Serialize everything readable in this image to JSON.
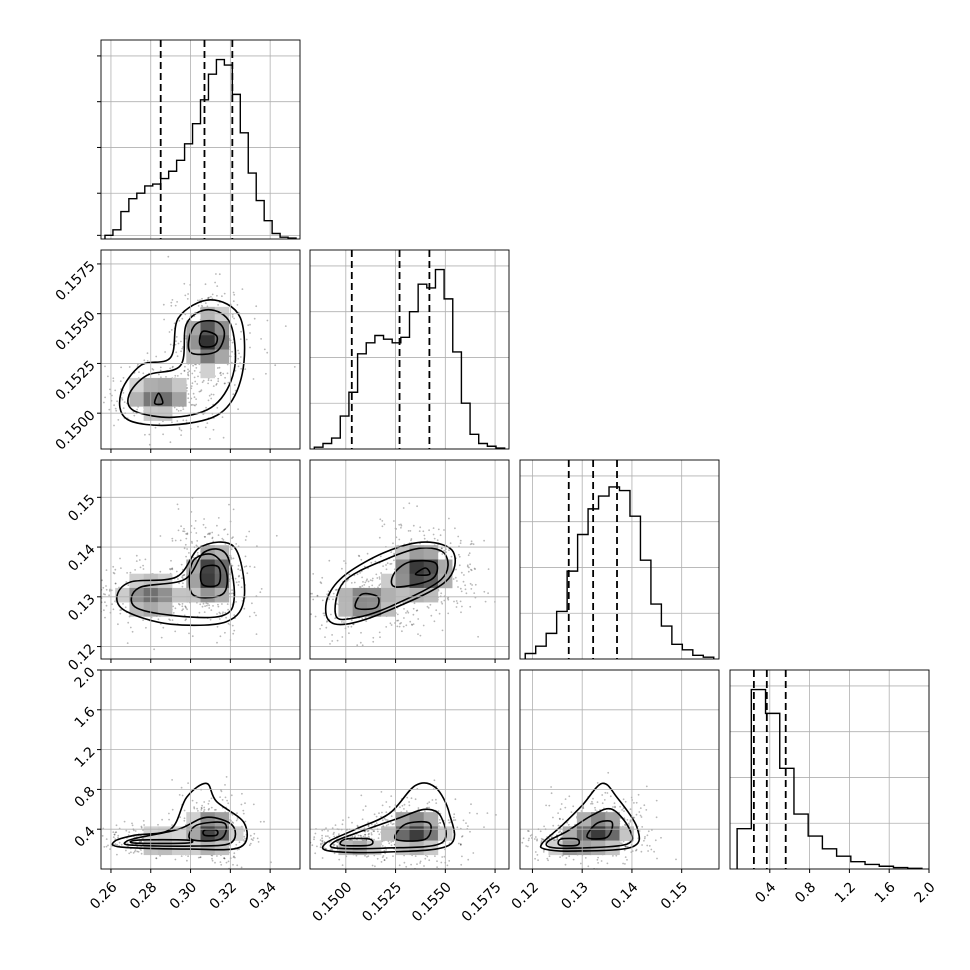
{
  "chart_data": {
    "type": "corner",
    "grid": true,
    "colors": {
      "line": "#000000",
      "grid": "#b0b0b0",
      "points": "#000000",
      "density_dark": "#141414",
      "background": "#ffffff"
    },
    "parameters": [
      {
        "range": [
          0.255,
          0.355
        ],
        "ticks": [
          0.26,
          0.28,
          0.3,
          0.32,
          0.34
        ],
        "tick_labels": [
          "0.26",
          "0.28",
          "0.30",
          "0.32",
          "0.34"
        ],
        "quantiles": [
          0.285,
          0.307,
          0.321
        ],
        "histogram": [
          0.02,
          0.05,
          0.15,
          0.22,
          0.25,
          0.29,
          0.3,
          0.33,
          0.37,
          0.43,
          0.52,
          0.63,
          0.76,
          0.9,
          0.98,
          0.95,
          0.79,
          0.58,
          0.36,
          0.21,
          0.1,
          0.03,
          0.01,
          0.005
        ]
      },
      {
        "range": [
          0.1482,
          0.1582
        ],
        "ticks": [
          0.15,
          0.1525,
          0.155,
          0.1575
        ],
        "tick_labels": [
          "0.1500",
          "0.1525",
          "0.1550",
          "0.1575"
        ],
        "quantiles": [
          0.1503,
          0.1527,
          0.1542
        ],
        "histogram": [
          0.01,
          0.03,
          0.06,
          0.18,
          0.31,
          0.52,
          0.58,
          0.62,
          0.6,
          0.58,
          0.61,
          0.75,
          0.9,
          0.88,
          0.98,
          0.82,
          0.53,
          0.25,
          0.08,
          0.03,
          0.015,
          0.005
        ]
      },
      {
        "range": [
          0.1175,
          0.1575
        ],
        "ticks": [
          0.12,
          0.13,
          0.14,
          0.15
        ],
        "tick_labels": [
          "0.12",
          "0.13",
          "0.14",
          "0.15"
        ],
        "quantiles": [
          0.1273,
          0.1322,
          0.137
        ],
        "histogram": [
          0.03,
          0.07,
          0.14,
          0.26,
          0.48,
          0.68,
          0.82,
          0.89,
          0.94,
          0.92,
          0.78,
          0.54,
          0.3,
          0.18,
          0.08,
          0.05,
          0.02,
          0.01
        ]
      },
      {
        "range": [
          0.0,
          2.0
        ],
        "ticks": [
          0.4,
          0.8,
          1.2,
          1.6,
          2.0
        ],
        "tick_labels": [
          "0.4",
          "0.8",
          "1.2",
          "1.6",
          "2.0"
        ],
        "quantiles": [
          0.24,
          0.37,
          0.56
        ],
        "histogram": [
          0.22,
          0.98,
          0.85,
          0.55,
          0.3,
          0.18,
          0.11,
          0.07,
          0.04,
          0.025,
          0.015,
          0.008,
          0.004
        ]
      }
    ],
    "histogram_diagonal_ticks": {
      "0": [
        0.02,
        0.25,
        0.5,
        0.75,
        1.0
      ],
      "1": [
        0.0,
        0.25,
        0.5,
        0.75,
        1.0
      ],
      "2": [
        0.0,
        0.25,
        0.5,
        0.75,
        1.0
      ],
      "3": [
        0.0,
        0.25,
        0.5,
        0.75,
        1.0
      ]
    },
    "pairs": [
      {
        "row": 1,
        "col": 0,
        "scatter_spread": [
          0.013,
          0.0013
        ],
        "modes": [
          {
            "x": 0.3094,
            "y": 0.1537,
            "sx": 0.007,
            "sy": 0.0009,
            "w": 0.58
          },
          {
            "x": 0.2845,
            "y": 0.1508,
            "sx": 0.01,
            "sy": 0.0006,
            "w": 0.42
          }
        ],
        "contours": [
          [
            [
              0.268,
              0.1497
            ],
            [
              0.29,
              0.1494
            ],
            [
              0.315,
              0.15
            ],
            [
              0.326,
              0.152
            ],
            [
              0.325,
              0.1548
            ],
            [
              0.31,
              0.1557
            ],
            [
              0.294,
              0.1548
            ],
            [
              0.29,
              0.1528
            ],
            [
              0.275,
              0.1524
            ],
            [
              0.265,
              0.151
            ]
          ],
          [
            [
              0.272,
              0.1501
            ],
            [
              0.292,
              0.1498
            ],
            [
              0.312,
              0.1504
            ],
            [
              0.322,
              0.1522
            ],
            [
              0.32,
              0.1545
            ],
            [
              0.309,
              0.1552
            ],
            [
              0.298,
              0.1545
            ],
            [
              0.295,
              0.1524
            ],
            [
              0.278,
              0.1519
            ],
            [
              0.269,
              0.1509
            ]
          ],
          [
            [
              0.301,
              0.153
            ],
            [
              0.313,
              0.1531
            ],
            [
              0.317,
              0.154
            ],
            [
              0.313,
              0.1546
            ],
            [
              0.303,
              0.1545
            ],
            [
              0.299,
              0.1536
            ]
          ],
          [
            [
              0.305,
              0.1534
            ],
            [
              0.312,
              0.1534
            ],
            [
              0.313,
              0.1539
            ],
            [
              0.306,
              0.1541
            ]
          ],
          [
            [
              0.282,
              0.1505
            ],
            [
              0.286,
              0.1505
            ],
            [
              0.284,
              0.151
            ]
          ]
        ]
      },
      {
        "row": 2,
        "col": 0,
        "scatter_spread": [
          0.013,
          0.005
        ],
        "modes": [
          {
            "x": 0.3105,
            "y": 0.1345,
            "sx": 0.007,
            "sy": 0.0035,
            "w": 0.6
          },
          {
            "x": 0.28,
            "y": 0.13,
            "sx": 0.01,
            "sy": 0.0025,
            "w": 0.4
          }
        ],
        "contours": [
          [
            [
              0.268,
              0.127
            ],
            [
              0.29,
              0.1245
            ],
            [
              0.318,
              0.125
            ],
            [
              0.327,
              0.13
            ],
            [
              0.322,
              0.14
            ],
            [
              0.305,
              0.14
            ],
            [
              0.293,
              0.134
            ],
            [
              0.27,
              0.133
            ],
            [
              0.263,
              0.13
            ]
          ],
          [
            [
              0.272,
              0.128
            ],
            [
              0.292,
              0.1262
            ],
            [
              0.316,
              0.1262
            ],
            [
              0.322,
              0.13
            ],
            [
              0.318,
              0.1385
            ],
            [
              0.307,
              0.139
            ],
            [
              0.297,
              0.1335
            ],
            [
              0.274,
              0.1318
            ]
          ],
          [
            [
              0.301,
              0.1305
            ],
            [
              0.316,
              0.1305
            ],
            [
              0.318,
              0.135
            ],
            [
              0.311,
              0.1385
            ],
            [
              0.301,
              0.137
            ]
          ],
          [
            [
              0.306,
              0.1325
            ],
            [
              0.314,
              0.1325
            ],
            [
              0.314,
              0.136
            ],
            [
              0.306,
              0.1358
            ]
          ]
        ]
      },
      {
        "row": 2,
        "col": 1,
        "scatter_spread": [
          0.0013,
          0.0055
        ],
        "modes": [
          {
            "x": 0.1538,
            "y": 0.135,
            "sx": 0.0009,
            "sy": 0.0032,
            "w": 0.6
          },
          {
            "x": 0.151,
            "y": 0.129,
            "sx": 0.001,
            "sy": 0.0025,
            "w": 0.4
          }
        ],
        "contours": [
          [
            [
              0.1491,
              0.1255
            ],
            [
              0.15,
              0.1245
            ],
            [
              0.152,
              0.127
            ],
            [
              0.155,
              0.133
            ],
            [
              0.1554,
              0.139
            ],
            [
              0.154,
              0.141
            ],
            [
              0.152,
              0.139
            ],
            [
              0.15,
              0.1345
            ],
            [
              0.1491,
              0.13
            ]
          ],
          [
            [
              0.1495,
              0.1262
            ],
            [
              0.1505,
              0.1258
            ],
            [
              0.1522,
              0.128
            ],
            [
              0.1548,
              0.1335
            ],
            [
              0.155,
              0.1385
            ],
            [
              0.1538,
              0.1398
            ],
            [
              0.152,
              0.1375
            ],
            [
              0.1499,
              0.133
            ]
          ],
          [
            [
              0.1505,
              0.1278
            ],
            [
              0.1515,
              0.1278
            ],
            [
              0.1516,
              0.13
            ],
            [
              0.1508,
              0.1305
            ]
          ],
          [
            [
              0.1525,
              0.132
            ],
            [
              0.1543,
              0.1335
            ],
            [
              0.1545,
              0.1368
            ],
            [
              0.1532,
              0.137
            ],
            [
              0.1524,
              0.1345
            ]
          ],
          [
            [
              0.1535,
              0.1345
            ],
            [
              0.1542,
              0.1345
            ],
            [
              0.154,
              0.1358
            ]
          ]
        ]
      },
      {
        "row": 3,
        "col": 0,
        "scatter_spread": [
          0.013,
          0.22
        ],
        "modes": [
          {
            "x": 0.311,
            "y": 0.38,
            "sx": 0.007,
            "sy": 0.12,
            "w": 0.55
          },
          {
            "x": 0.285,
            "y": 0.28,
            "sx": 0.01,
            "sy": 0.05,
            "w": 0.45
          }
        ],
        "contours": [
          [
            [
              0.265,
              0.22
            ],
            [
              0.3,
              0.2
            ],
            [
              0.325,
              0.22
            ],
            [
              0.327,
              0.46
            ],
            [
              0.313,
              0.68
            ],
            [
              0.308,
              0.86
            ],
            [
              0.298,
              0.72
            ],
            [
              0.29,
              0.4
            ],
            [
              0.272,
              0.34
            ],
            [
              0.262,
              0.28
            ]
          ],
          [
            [
              0.27,
              0.24
            ],
            [
              0.3,
              0.23
            ],
            [
              0.32,
              0.26
            ],
            [
              0.321,
              0.44
            ],
            [
              0.308,
              0.52
            ],
            [
              0.294,
              0.4
            ],
            [
              0.275,
              0.32
            ],
            [
              0.268,
              0.28
            ]
          ],
          [
            [
              0.3,
              0.3
            ],
            [
              0.315,
              0.3
            ],
            [
              0.317,
              0.46
            ],
            [
              0.303,
              0.44
            ]
          ],
          [
            [
              0.272,
              0.26
            ],
            [
              0.298,
              0.26
            ],
            [
              0.298,
              0.29
            ],
            [
              0.274,
              0.29
            ]
          ],
          [
            [
              0.307,
              0.34
            ],
            [
              0.313,
              0.34
            ],
            [
              0.313,
              0.39
            ],
            [
              0.307,
              0.39
            ]
          ]
        ]
      },
      {
        "row": 3,
        "col": 1,
        "scatter_spread": [
          0.0013,
          0.22
        ],
        "modes": [
          {
            "x": 0.1535,
            "y": 0.38,
            "sx": 0.0009,
            "sy": 0.12,
            "w": 0.55
          },
          {
            "x": 0.1505,
            "y": 0.27,
            "sx": 0.0008,
            "sy": 0.05,
            "w": 0.45
          }
        ],
        "contours": [
          [
            [
              0.1492,
              0.18
            ],
            [
              0.152,
              0.17
            ],
            [
              0.1552,
              0.24
            ],
            [
              0.1552,
              0.56
            ],
            [
              0.1545,
              0.82
            ],
            [
              0.1535,
              0.84
            ],
            [
              0.1522,
              0.56
            ],
            [
              0.1505,
              0.4
            ],
            [
              0.149,
              0.26
            ]
          ],
          [
            [
              0.1495,
              0.21
            ],
            [
              0.152,
              0.21
            ],
            [
              0.1548,
              0.26
            ],
            [
              0.1548,
              0.52
            ],
            [
              0.154,
              0.6
            ],
            [
              0.1525,
              0.5
            ],
            [
              0.1505,
              0.36
            ],
            [
              0.1494,
              0.27
            ]
          ],
          [
            [
              0.1525,
              0.3
            ],
            [
              0.154,
              0.3
            ],
            [
              0.1542,
              0.46
            ],
            [
              0.153,
              0.45
            ]
          ],
          [
            [
              0.1498,
              0.24
            ],
            [
              0.1512,
              0.24
            ],
            [
              0.1512,
              0.3
            ],
            [
              0.15,
              0.3
            ]
          ]
        ]
      },
      {
        "row": 3,
        "col": 2,
        "scatter_spread": [
          0.005,
          0.22
        ],
        "modes": [
          {
            "x": 0.1335,
            "y": 0.38,
            "sx": 0.0035,
            "sy": 0.12,
            "w": 0.55
          },
          {
            "x": 0.1275,
            "y": 0.27,
            "sx": 0.0025,
            "sy": 0.05,
            "w": 0.45
          }
        ],
        "contours": [
          [
            [
              0.1225,
              0.2
            ],
            [
              0.128,
              0.18
            ],
            [
              0.14,
              0.22
            ],
            [
              0.141,
              0.42
            ],
            [
              0.137,
              0.72
            ],
            [
              0.134,
              0.86
            ],
            [
              0.13,
              0.64
            ],
            [
              0.126,
              0.44
            ],
            [
              0.122,
              0.26
            ]
          ],
          [
            [
              0.1235,
              0.22
            ],
            [
              0.129,
              0.21
            ],
            [
              0.139,
              0.25
            ],
            [
              0.1395,
              0.4
            ],
            [
              0.136,
              0.6
            ],
            [
              0.132,
              0.54
            ],
            [
              0.127,
              0.38
            ],
            [
              0.1232,
              0.28
            ]
          ],
          [
            [
              0.131,
              0.32
            ],
            [
              0.135,
              0.32
            ],
            [
              0.136,
              0.47
            ],
            [
              0.133,
              0.46
            ]
          ],
          [
            [
              0.1255,
              0.24
            ],
            [
              0.129,
              0.24
            ],
            [
              0.129,
              0.3
            ],
            [
              0.1257,
              0.3
            ]
          ]
        ]
      }
    ]
  }
}
